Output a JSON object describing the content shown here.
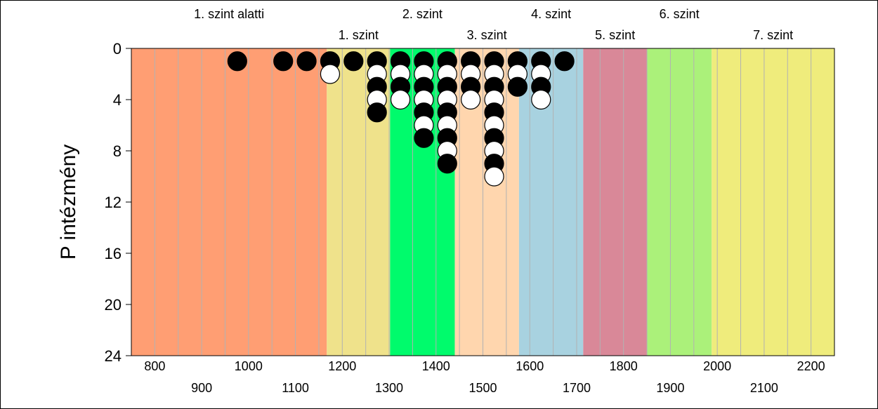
{
  "chart_data": {
    "type": "scatter",
    "ylabel": "P intézmény",
    "xlim": [
      750,
      2250
    ],
    "ylim": [
      0,
      24
    ],
    "y_inverted": true,
    "y_ticks": [
      "0",
      "4",
      "8",
      "12",
      "16",
      "20",
      "24"
    ],
    "y_tick_values": [
      0,
      4,
      8,
      12,
      16,
      20,
      24
    ],
    "x_ticks_upper": [
      "800",
      "1000",
      "1200",
      "1400",
      "1600",
      "1800",
      "2000",
      "2200"
    ],
    "x_ticks_upper_values": [
      800,
      1000,
      1200,
      1400,
      1600,
      1800,
      2000,
      2200
    ],
    "x_ticks_lower": [
      "900",
      "1100",
      "1300",
      "1500",
      "1700",
      "1900",
      "2100"
    ],
    "x_ticks_lower_values": [
      900,
      1100,
      1300,
      1500,
      1700,
      1900,
      2100
    ],
    "minor_grid_step": 50,
    "levels": [
      {
        "label": "1. szint alatti",
        "from": 750,
        "to": 1167,
        "color": "#FF9E73"
      },
      {
        "label": "1. szint",
        "from": 1167,
        "to": 1302,
        "color": "#EFE28B"
      },
      {
        "label": "2. szint",
        "from": 1302,
        "to": 1440,
        "color": "#00FB6C"
      },
      {
        "label": "3. szint",
        "from": 1440,
        "to": 1577,
        "color": "#FFD6AE"
      },
      {
        "label": "4. szint",
        "from": 1577,
        "to": 1714,
        "color": "#A8D2E0"
      },
      {
        "label": "5. szint",
        "from": 1714,
        "to": 1850,
        "color": "#D98898"
      },
      {
        "label": "6. szint",
        "from": 1850,
        "to": 1988,
        "color": "#ABF17A"
      },
      {
        "label": "7. szint",
        "from": 1988,
        "to": 2250,
        "color": "#EFEC7C"
      }
    ],
    "point_colors": {
      "odd": "#000000",
      "even": "#ffffff"
    },
    "columns": [
      {
        "x": 976,
        "count": 1
      },
      {
        "x": 1074,
        "count": 1
      },
      {
        "x": 1124,
        "count": 1
      },
      {
        "x": 1174,
        "count": 2
      },
      {
        "x": 1224,
        "count": 1
      },
      {
        "x": 1274,
        "count": 5
      },
      {
        "x": 1324,
        "count": 4
      },
      {
        "x": 1374,
        "count": 7
      },
      {
        "x": 1424,
        "count": 9
      },
      {
        "x": 1474,
        "count": 4
      },
      {
        "x": 1524,
        "count": 10
      },
      {
        "x": 1574,
        "count": 3
      },
      {
        "x": 1624,
        "count": 4
      },
      {
        "x": 1674,
        "count": 1
      }
    ]
  }
}
